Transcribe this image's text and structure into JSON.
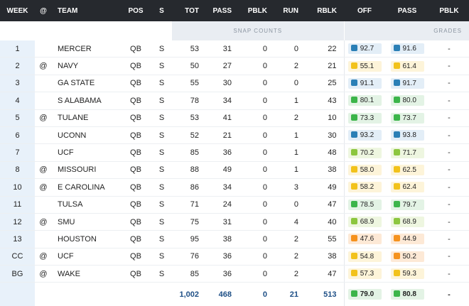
{
  "group_headers": {
    "snap_counts": "SNAP COUNTS",
    "grades": "GRADES"
  },
  "columns": [
    "WEEK",
    "@",
    "TEAM",
    "POS",
    "S",
    "TOT",
    "PASS",
    "PBLK",
    "RUN",
    "RBLK",
    "OFF",
    "PASS",
    "PBLK"
  ],
  "grade_colors": {
    "blue": "#2a7fb6",
    "green": "#3cb54a",
    "lime": "#8cc63f",
    "yellow": "#f2c21b",
    "orange": "#f5921e"
  },
  "rows": [
    {
      "week": "1",
      "at": "",
      "team": "MERCER",
      "pos": "QB",
      "s": "S",
      "tot": "53",
      "pass": "31",
      "pblk": "0",
      "run": "0",
      "rblk": "22",
      "off": "92.7",
      "off_c": "blue",
      "pg": "91.6",
      "pg_c": "blue",
      "pbg": "-"
    },
    {
      "week": "2",
      "at": "@",
      "team": "NAVY",
      "pos": "QB",
      "s": "S",
      "tot": "50",
      "pass": "27",
      "pblk": "0",
      "run": "2",
      "rblk": "21",
      "off": "55.1",
      "off_c": "yellow",
      "pg": "61.4",
      "pg_c": "yellow",
      "pbg": "-"
    },
    {
      "week": "3",
      "at": "",
      "team": "GA STATE",
      "pos": "QB",
      "s": "S",
      "tot": "55",
      "pass": "30",
      "pblk": "0",
      "run": "0",
      "rblk": "25",
      "off": "91.1",
      "off_c": "blue",
      "pg": "91.7",
      "pg_c": "blue",
      "pbg": "-"
    },
    {
      "week": "4",
      "at": "",
      "team": "S ALABAMA",
      "pos": "QB",
      "s": "S",
      "tot": "78",
      "pass": "34",
      "pblk": "0",
      "run": "1",
      "rblk": "43",
      "off": "80.1",
      "off_c": "green",
      "pg": "80.0",
      "pg_c": "green",
      "pbg": "-"
    },
    {
      "week": "5",
      "at": "@",
      "team": "TULANE",
      "pos": "QB",
      "s": "S",
      "tot": "53",
      "pass": "41",
      "pblk": "0",
      "run": "2",
      "rblk": "10",
      "off": "73.3",
      "off_c": "green",
      "pg": "73.7",
      "pg_c": "green",
      "pbg": "-"
    },
    {
      "week": "6",
      "at": "",
      "team": "UCONN",
      "pos": "QB",
      "s": "S",
      "tot": "52",
      "pass": "21",
      "pblk": "0",
      "run": "1",
      "rblk": "30",
      "off": "93.2",
      "off_c": "blue",
      "pg": "93.8",
      "pg_c": "blue",
      "pbg": "-"
    },
    {
      "week": "7",
      "at": "",
      "team": "UCF",
      "pos": "QB",
      "s": "S",
      "tot": "85",
      "pass": "36",
      "pblk": "0",
      "run": "1",
      "rblk": "48",
      "off": "70.2",
      "off_c": "lime",
      "pg": "71.7",
      "pg_c": "lime",
      "pbg": "-"
    },
    {
      "week": "8",
      "at": "@",
      "team": "MISSOURI",
      "pos": "QB",
      "s": "S",
      "tot": "88",
      "pass": "49",
      "pblk": "0",
      "run": "1",
      "rblk": "38",
      "off": "58.0",
      "off_c": "yellow",
      "pg": "62.5",
      "pg_c": "yellow",
      "pbg": "-"
    },
    {
      "week": "10",
      "at": "@",
      "team": "E CAROLINA",
      "pos": "QB",
      "s": "S",
      "tot": "86",
      "pass": "34",
      "pblk": "0",
      "run": "3",
      "rblk": "49",
      "off": "58.2",
      "off_c": "yellow",
      "pg": "62.4",
      "pg_c": "yellow",
      "pbg": "-"
    },
    {
      "week": "11",
      "at": "",
      "team": "TULSA",
      "pos": "QB",
      "s": "S",
      "tot": "71",
      "pass": "24",
      "pblk": "0",
      "run": "0",
      "rblk": "47",
      "off": "78.5",
      "off_c": "green",
      "pg": "79.7",
      "pg_c": "green",
      "pbg": "-"
    },
    {
      "week": "12",
      "at": "@",
      "team": "SMU",
      "pos": "QB",
      "s": "S",
      "tot": "75",
      "pass": "31",
      "pblk": "0",
      "run": "4",
      "rblk": "40",
      "off": "68.9",
      "off_c": "lime",
      "pg": "68.9",
      "pg_c": "lime",
      "pbg": "-"
    },
    {
      "week": "13",
      "at": "",
      "team": "HOUSTON",
      "pos": "QB",
      "s": "S",
      "tot": "95",
      "pass": "38",
      "pblk": "0",
      "run": "2",
      "rblk": "55",
      "off": "47.6",
      "off_c": "orange",
      "pg": "44.9",
      "pg_c": "orange",
      "pbg": "-"
    },
    {
      "week": "CC",
      "at": "@",
      "team": "UCF",
      "pos": "QB",
      "s": "S",
      "tot": "76",
      "pass": "36",
      "pblk": "0",
      "run": "2",
      "rblk": "38",
      "off": "54.8",
      "off_c": "yellow",
      "pg": "50.2",
      "pg_c": "orange",
      "pbg": "-"
    },
    {
      "week": "BG",
      "at": "@",
      "team": "WAKE",
      "pos": "QB",
      "s": "S",
      "tot": "85",
      "pass": "36",
      "pblk": "0",
      "run": "2",
      "rblk": "47",
      "off": "57.3",
      "off_c": "yellow",
      "pg": "59.3",
      "pg_c": "yellow",
      "pbg": "-"
    }
  ],
  "totals": {
    "tot": "1,002",
    "pass": "468",
    "pblk": "0",
    "run": "21",
    "rblk": "513",
    "off": "79.0",
    "off_c": "green",
    "pg": "80.8",
    "pg_c": "green",
    "pbg": "-"
  }
}
